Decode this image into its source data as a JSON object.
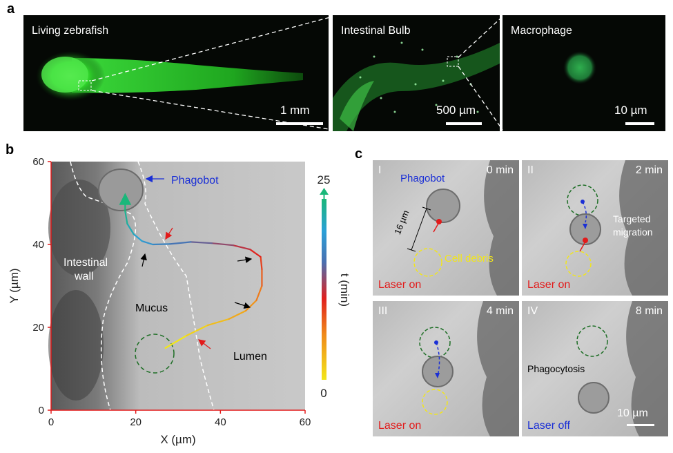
{
  "panel_a": {
    "letter": "a",
    "images": [
      {
        "title": "Living zebrafish",
        "scale": "1 mm"
      },
      {
        "title": "Intestinal Bulb",
        "scale": "500 µm"
      },
      {
        "title": "Macrophage",
        "scale": "10 µm"
      }
    ]
  },
  "panel_b": {
    "letter": "b",
    "x_label": "X (µm)",
    "y_label": "Y (µm)",
    "x_ticks": [
      "0",
      "20",
      "40",
      "60"
    ],
    "y_ticks": [
      "0",
      "20",
      "40",
      "60"
    ],
    "xlim": [
      0,
      60
    ],
    "ylim": [
      0,
      60
    ],
    "colorbar": {
      "label": "t (min)",
      "max": "25",
      "min": "0"
    },
    "labels": {
      "phagobot": "Phagobot",
      "intestinal_wall": "Intestinal\nwall",
      "mucus": "Mucus",
      "lumen": "Lumen"
    },
    "trajectory": [
      [
        27,
        15
      ],
      [
        32,
        18
      ],
      [
        37,
        20.5
      ],
      [
        42,
        22
      ],
      [
        46,
        24
      ],
      [
        48.5,
        26.5
      ],
      [
        49.8,
        30
      ],
      [
        49.8,
        34
      ],
      [
        49.5,
        37
      ],
      [
        47,
        38.8
      ],
      [
        43,
        39.8
      ],
      [
        38,
        40.3
      ],
      [
        33,
        40.6
      ],
      [
        28,
        40.1
      ],
      [
        24,
        40
      ],
      [
        21.5,
        40.8
      ],
      [
        19.5,
        42.5
      ],
      [
        18,
        45
      ],
      [
        17.5,
        48
      ],
      [
        17.5,
        51
      ]
    ]
  },
  "panel_c": {
    "letter": "c",
    "frames": [
      {
        "id": "I",
        "time": "0 min",
        "laser": "Laser on",
        "laser_color": "#e21a1a"
      },
      {
        "id": "II",
        "time": "2 min",
        "laser": "Laser on",
        "laser_color": "#e21a1a"
      },
      {
        "id": "III",
        "time": "4 min",
        "laser": "Laser on",
        "laser_color": "#e21a1a"
      },
      {
        "id": "IV",
        "time": "8 min",
        "laser": "Laser off",
        "laser_color": "#1a2fd6"
      }
    ],
    "annotations": {
      "phagobot": "Phagobot",
      "size": "16 µm",
      "cell_debris": "Cell debris",
      "targeted_migration": "Targeted\nmigration",
      "phagocytosis": "Phagocytosis",
      "scale": "10 µm"
    }
  }
}
